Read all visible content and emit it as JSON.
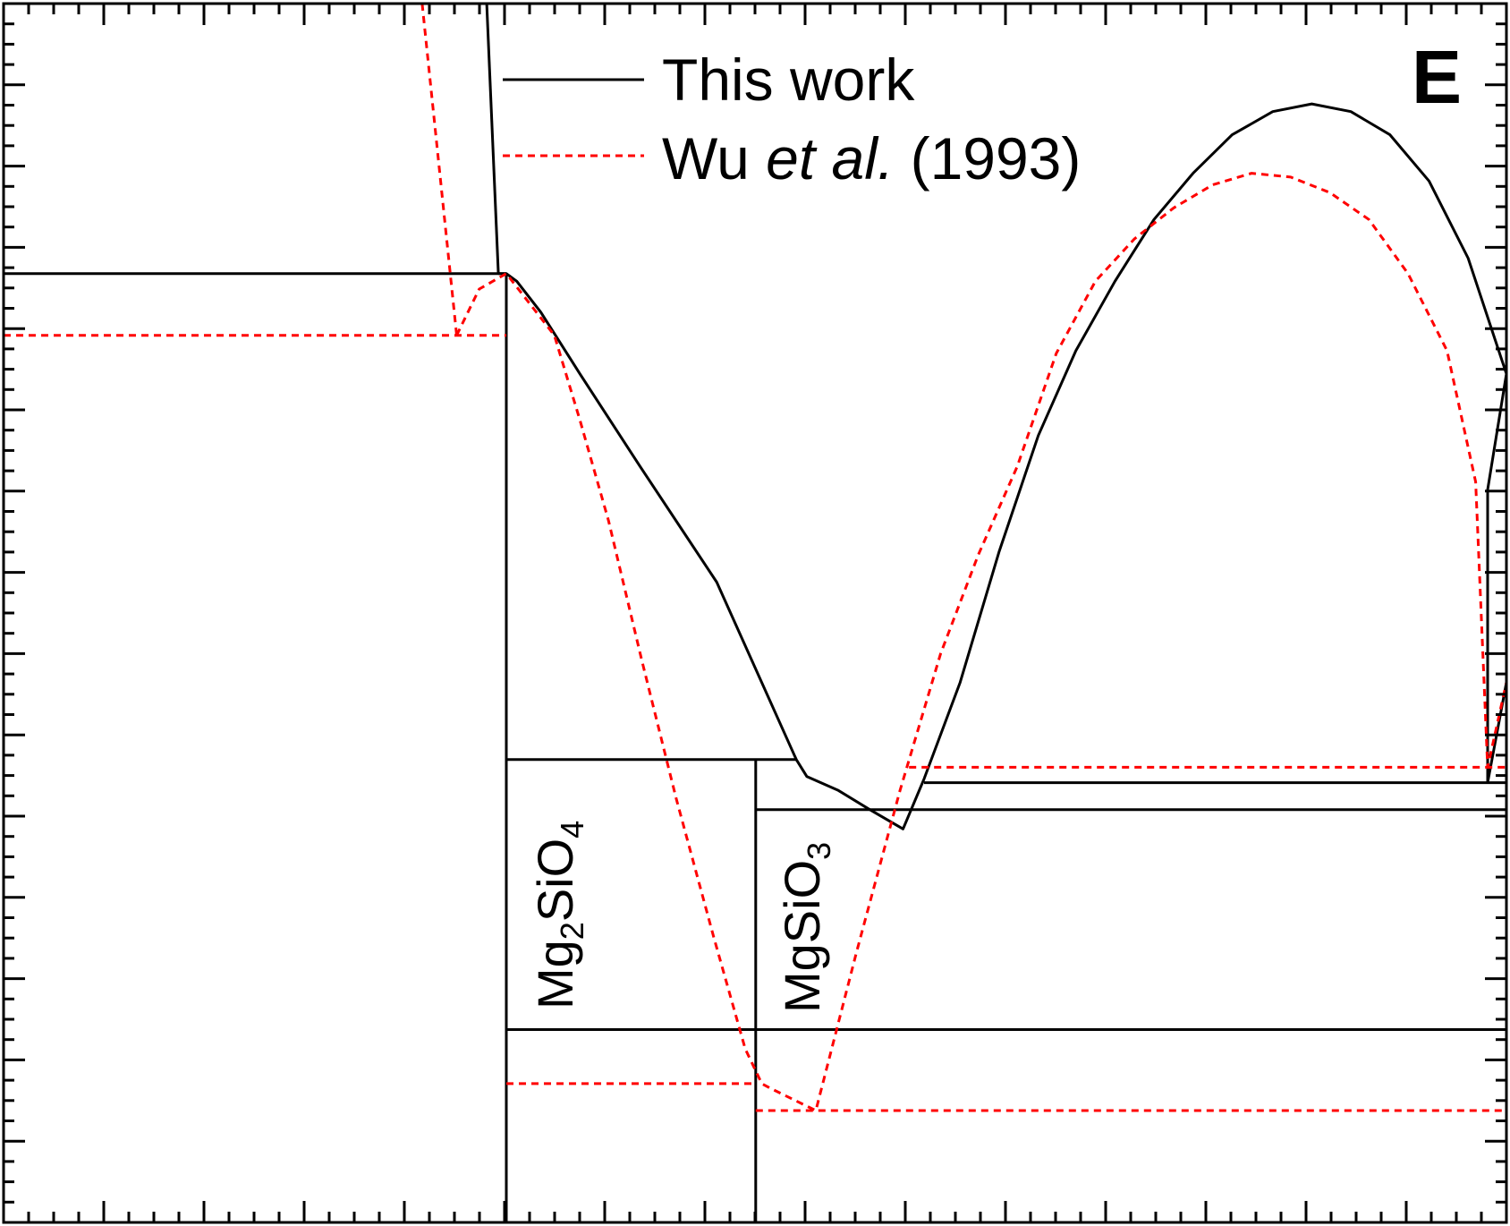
{
  "chart_data": {
    "type": "line",
    "panel_label": "E",
    "legend": {
      "placement": "top-center",
      "entries": [
        {
          "name": "This work",
          "color": "#000000",
          "style": "solid"
        },
        {
          "prefix": "Wu ",
          "italic": "et al.",
          "suffix": " (1993)",
          "color": "#ff0000",
          "style": "dashed"
        }
      ]
    },
    "annotations": [
      {
        "base": "Mg",
        "sub1": "2",
        "mid": "SiO",
        "sub2": "4"
      },
      {
        "base": "MgSiO",
        "sub1": "3"
      }
    ],
    "axes": {
      "xlim": [
        0,
        1
      ],
      "ylim": [
        0,
        1
      ],
      "tick_labels": "none",
      "major_ticks": 15,
      "minor_per_major": 4,
      "grid": false
    },
    "series": [
      {
        "name": "This work",
        "color": "#000000",
        "dash": "none",
        "lines": [
          [
            [
              0.3215,
              1.0
            ],
            [
              0.3292,
              0.7785
            ]
          ],
          [
            [
              0.3292,
              0.7785
            ],
            [
              0.3345,
              0.7785
            ],
            [
              0.3415,
              0.7722
            ],
            [
              0.3575,
              0.7468
            ],
            [
              0.3835,
              0.6962
            ],
            [
              0.4235,
              0.6203
            ],
            [
              0.4745,
              0.5253
            ],
            [
              0.5275,
              0.3797
            ],
            [
              0.5345,
              0.3658
            ],
            [
              0.5555,
              0.3544
            ],
            [
              0.5765,
              0.3386
            ],
            [
              0.5985,
              0.3228
            ],
            [
              0.6125,
              0.3639
            ],
            [
              0.6365,
              0.443
            ],
            [
              0.6625,
              0.5506
            ],
            [
              0.6885,
              0.6456
            ],
            [
              0.7135,
              0.7152
            ],
            [
              0.7395,
              0.7722
            ],
            [
              0.7655,
              0.8228
            ],
            [
              0.7915,
              0.8608
            ],
            [
              0.8175,
              0.8924
            ],
            [
              0.8445,
              0.9114
            ],
            [
              0.8705,
              0.9177
            ],
            [
              0.8965,
              0.9114
            ],
            [
              0.9225,
              0.8924
            ],
            [
              0.9485,
              0.8544
            ],
            [
              0.9745,
              0.7911
            ],
            [
              1.0,
              0.6962
            ],
            [
              0.9875,
              0.6012
            ],
            [
              0.9875,
              0.3608
            ]
          ],
          [
            [
              0.9875,
              0.3608
            ],
            [
              1.0,
              0.443
            ]
          ],
          [
            [
              0.0,
              0.7785
            ],
            [
              0.3345,
              0.7785
            ]
          ],
          [
            [
              0.3345,
              0.7785
            ],
            [
              0.3345,
              0.0
            ]
          ],
          [
            [
              0.3345,
              0.3797
            ],
            [
              0.5275,
              0.3797
            ]
          ],
          [
            [
              0.5005,
              0.3797
            ],
            [
              0.5005,
              0.0
            ]
          ],
          [
            [
              0.5005,
              0.3386
            ],
            [
              1.0,
              0.3386
            ]
          ],
          [
            [
              0.6125,
              0.3608
            ],
            [
              1.0,
              0.3608
            ]
          ],
          [
            [
              0.3345,
              0.1582
            ],
            [
              1.0,
              0.1582
            ]
          ]
        ]
      },
      {
        "name": "Wu et al. (1993)",
        "color": "#ff0000",
        "dash": "8,6",
        "lines": [
          [
            [
              0.2785,
              1.0
            ],
            [
              0.3015,
              0.7278
            ]
          ],
          [
            [
              0.3015,
              0.7278
            ],
            [
              0.3165,
              0.7658
            ],
            [
              0.3345,
              0.7785
            ],
            [
              0.3665,
              0.7278
            ],
            [
              0.3835,
              0.6582
            ],
            [
              0.4025,
              0.5759
            ],
            [
              0.4245,
              0.462
            ],
            [
              0.4475,
              0.3481
            ],
            [
              0.4725,
              0.2342
            ],
            [
              0.4935,
              0.1424
            ],
            [
              0.5045,
              0.1139
            ],
            [
              0.5095,
              0.1105
            ],
            [
              0.5405,
              0.0918
            ],
            [
              0.5675,
              0.2215
            ],
            [
              0.5965,
              0.3544
            ],
            [
              0.6235,
              0.4667
            ],
            [
              0.6485,
              0.5475
            ],
            [
              0.6745,
              0.6203
            ],
            [
              0.7005,
              0.713
            ],
            [
              0.7265,
              0.7722
            ],
            [
              0.7525,
              0.807
            ],
            [
              0.7785,
              0.8323
            ],
            [
              0.8045,
              0.8513
            ],
            [
              0.8305,
              0.8608
            ],
            [
              0.8565,
              0.8576
            ],
            [
              0.8825,
              0.8449
            ],
            [
              0.9085,
              0.8228
            ],
            [
              0.9345,
              0.7785
            ],
            [
              0.9605,
              0.7152
            ],
            [
              0.9795,
              0.6076
            ],
            [
              0.9875,
              0.3734
            ],
            [
              1.0,
              0.443
            ]
          ],
          [
            [
              0.0,
              0.7278
            ],
            [
              0.3345,
              0.7278
            ]
          ],
          [
            [
              0.3345,
              0.1139
            ],
            [
              0.5005,
              0.1139
            ]
          ],
          [
            [
              0.5005,
              0.0918
            ],
            [
              1.0,
              0.0918
            ]
          ],
          [
            [
              0.6025,
              0.3734
            ],
            [
              1.0,
              0.3734
            ]
          ]
        ]
      }
    ]
  }
}
